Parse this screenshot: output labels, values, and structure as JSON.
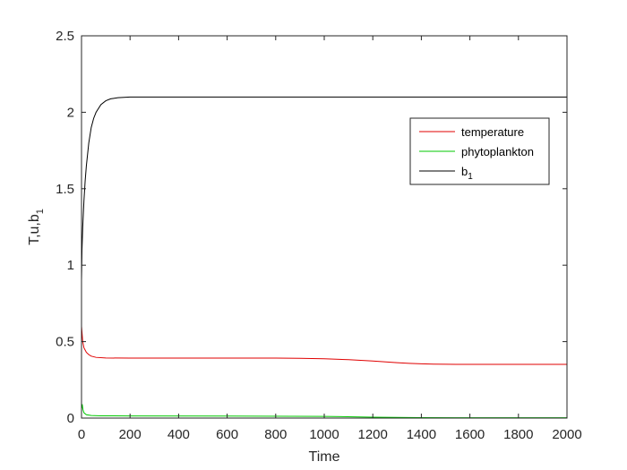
{
  "chart_data": {
    "type": "line",
    "xlabel": "Time",
    "ylabel": {
      "main": "T,u,b",
      "sub": "1"
    },
    "xlim": [
      0,
      2000
    ],
    "ylim": [
      0,
      2.5
    ],
    "xticks": [
      0,
      200,
      400,
      600,
      800,
      1000,
      1200,
      1400,
      1600,
      1800,
      2000
    ],
    "yticks": [
      0,
      0.5,
      1,
      1.5,
      2,
      2.5
    ],
    "ytick_labels": [
      "0",
      "0.5",
      "1",
      "1.5",
      "2",
      "2.5"
    ],
    "grid": false,
    "legend_position": "upper-right",
    "series": [
      {
        "name": "temperature",
        "color": "#e00000",
        "x": [
          0,
          2,
          5,
          10,
          20,
          30,
          40,
          60,
          100,
          200,
          400,
          600,
          800,
          900,
          1000,
          1100,
          1200,
          1300,
          1350,
          1400,
          1450,
          1500,
          1600,
          1800,
          2000
        ],
        "y": [
          0.6,
          0.56,
          0.5,
          0.46,
          0.43,
          0.415,
          0.405,
          0.397,
          0.393,
          0.392,
          0.392,
          0.392,
          0.392,
          0.391,
          0.388,
          0.382,
          0.373,
          0.362,
          0.358,
          0.355,
          0.353,
          0.352,
          0.351,
          0.351,
          0.351
        ]
      },
      {
        "name": "phytoplankton",
        "color": "#00c800",
        "x": [
          0,
          3,
          6,
          10,
          20,
          40,
          80,
          200,
          600,
          1000,
          1200,
          1400,
          1600,
          2000
        ],
        "y": [
          0.06,
          0.09,
          0.055,
          0.035,
          0.022,
          0.017,
          0.015,
          0.014,
          0.013,
          0.011,
          0.006,
          0.003,
          0.002,
          0.002
        ]
      },
      {
        "name": "b",
        "name_sub": "1",
        "color": "#000000",
        "x": [
          0,
          2,
          5,
          10,
          15,
          20,
          30,
          40,
          50,
          60,
          80,
          100,
          120,
          150,
          200,
          300,
          500,
          1000,
          1500,
          2000
        ],
        "y": [
          0.9,
          1.1,
          1.25,
          1.42,
          1.55,
          1.65,
          1.8,
          1.9,
          1.96,
          2.0,
          2.05,
          2.075,
          2.088,
          2.095,
          2.1,
          2.1,
          2.1,
          2.1,
          2.1,
          2.1
        ]
      }
    ]
  }
}
